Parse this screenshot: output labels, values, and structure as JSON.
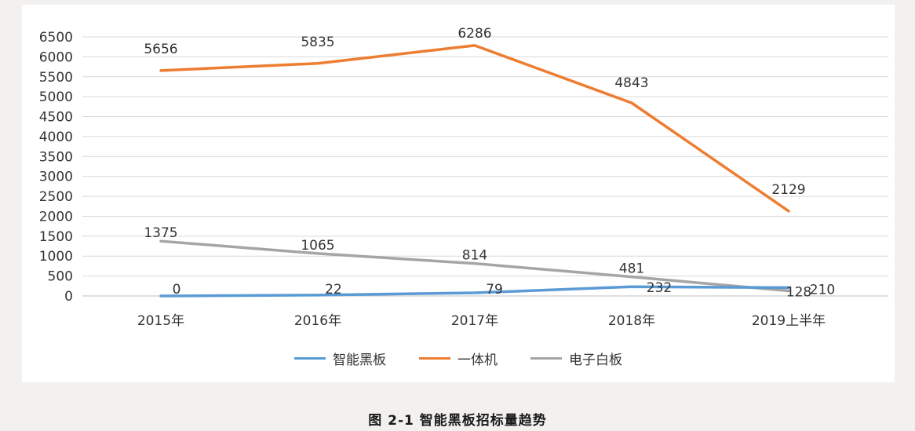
{
  "page": {
    "background": "#f2f1ef",
    "caption": "图 2-1 智能黑板招标量趋势"
  },
  "chart_data": {
    "type": "line",
    "title": "图 2-1 智能黑板招标量趋势",
    "xlabel": "",
    "ylabel": "",
    "categories": [
      "2015年",
      "2016年",
      "2017年",
      "2018年",
      "2019上半年"
    ],
    "series": [
      {
        "name": "智能黑板",
        "color": "#5B9BD5",
        "values": [
          0,
          22,
          79,
          232,
          210
        ]
      },
      {
        "name": "一体机",
        "color": "#ED7D31",
        "values": [
          5656,
          5835,
          6286,
          4843,
          2129
        ]
      },
      {
        "name": "电子白板",
        "color": "#A5A5A5",
        "values": [
          1375,
          1065,
          814,
          481,
          128
        ]
      }
    ],
    "ylim": [
      0,
      6500
    ],
    "ytick_step": 500,
    "grid": true,
    "legend_position": "bottom",
    "data_labels": true,
    "colors": {
      "gridline": "#d9d9d9",
      "axis_line": "#bfbfbf",
      "tick_text": "#333333",
      "label_text": "#333333"
    }
  }
}
